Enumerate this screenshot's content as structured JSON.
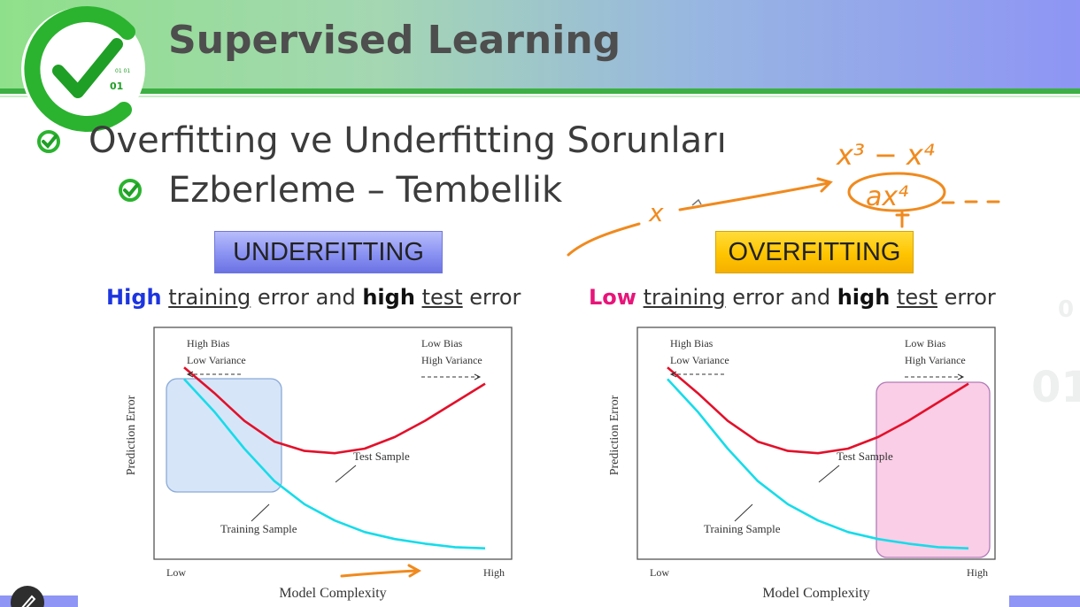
{
  "slide": {
    "title": "Supervised Learning",
    "bullet1": "Overfitting ve Underfitting Sorunları",
    "bullet2": "Ezberleme – Tembellik",
    "logo_digits": "01",
    "logo_binary": "01 01"
  },
  "labels": {
    "underfitting": "UNDERFITTING",
    "overfitting": "OVERFITTING"
  },
  "subtitles": {
    "left": {
      "w1": "High",
      "w2": "training",
      "w3": " error and ",
      "w4": "high",
      "w5": "test",
      "w6": " error"
    },
    "right": {
      "w1": "Low",
      "w2": "training",
      "w3": " error and ",
      "w4": "high",
      "w5": "test",
      "w6": " error"
    }
  },
  "annotations": {
    "x": "x",
    "x3": "x³ − x⁴",
    "ax4": "ax⁴"
  },
  "chart_data": [
    {
      "type": "line",
      "xlabel": "Model Complexity",
      "ylabel": "Prediction Error",
      "x_ticks": [
        "Low",
        "High"
      ],
      "top_left_note": [
        "High Bias",
        "Low Variance"
      ],
      "top_right_note": [
        "Low Bias",
        "High Variance"
      ],
      "highlight_region": "low-complexity",
      "highlight_color": "#cfe0f7",
      "x": [
        0,
        0.1,
        0.2,
        0.3,
        0.4,
        0.5,
        0.6,
        0.7,
        0.8,
        0.9,
        1.0
      ],
      "series": [
        {
          "name": "Test Sample",
          "color": "#e3102a",
          "values": [
            0.85,
            0.74,
            0.62,
            0.53,
            0.49,
            0.48,
            0.5,
            0.55,
            0.62,
            0.7,
            0.78
          ]
        },
        {
          "name": "Training Sample",
          "color": "#16dcea",
          "values": [
            0.8,
            0.66,
            0.5,
            0.36,
            0.26,
            0.19,
            0.14,
            0.11,
            0.09,
            0.075,
            0.07
          ]
        }
      ]
    },
    {
      "type": "line",
      "xlabel": "Model Complexity",
      "ylabel": "Prediction Error",
      "x_ticks": [
        "Low",
        "High"
      ],
      "top_left_note": [
        "High Bias",
        "Low Variance"
      ],
      "top_right_note": [
        "Low Bias",
        "High Variance"
      ],
      "highlight_region": "high-complexity",
      "highlight_color": "#f9c6e2",
      "x": [
        0,
        0.1,
        0.2,
        0.3,
        0.4,
        0.5,
        0.6,
        0.7,
        0.8,
        0.9,
        1.0
      ],
      "series": [
        {
          "name": "Test Sample",
          "color": "#e3102a",
          "values": [
            0.85,
            0.74,
            0.62,
            0.53,
            0.49,
            0.48,
            0.5,
            0.55,
            0.62,
            0.7,
            0.78
          ]
        },
        {
          "name": "Training Sample",
          "color": "#16dcea",
          "values": [
            0.8,
            0.66,
            0.5,
            0.36,
            0.26,
            0.19,
            0.14,
            0.11,
            0.09,
            0.075,
            0.07
          ]
        }
      ]
    }
  ]
}
